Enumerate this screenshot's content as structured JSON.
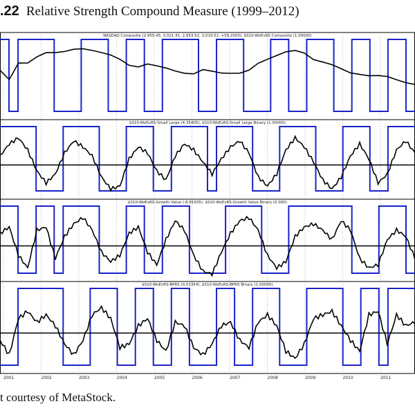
{
  "figure": {
    "number": ".22",
    "title": "Relative Strength Compound Measure (1999–2012)"
  },
  "caption": "t courtesy of MetaStock.",
  "chart_data": {
    "type": "line",
    "x_ticks": [
      "2001",
      "2002",
      "2003",
      "2004",
      "2005",
      "2006",
      "2007",
      "2008",
      "2009",
      "2010",
      "2011"
    ],
    "panels": [
      {
        "label": "NASDAQ Composite (2,955.45, 3,021.41, 2,953.52, 3,019.51, +59.2000), $S10-WoEvRS Composite (1.00000)",
        "price_series": [
          0.62,
          0.5,
          0.75,
          0.73,
          0.8,
          0.86,
          0.88,
          0.92,
          0.96,
          0.95,
          0.9,
          0.86,
          0.84,
          0.8,
          0.72,
          0.68,
          0.7,
          0.66,
          0.64,
          0.62,
          0.6,
          0.58,
          0.62,
          0.58,
          0.56,
          0.58,
          0.6,
          0.64,
          0.72,
          0.76,
          0.82,
          0.9,
          0.94,
          0.9,
          0.78,
          0.72,
          0.68,
          0.64,
          0.6,
          0.58,
          0.54,
          0.52,
          0.5,
          0.47,
          0.45,
          0.43
        ],
        "binary_series": [
          1,
          0,
          1,
          1,
          1,
          1,
          0,
          0,
          0,
          1,
          1,
          1,
          0,
          0,
          1,
          1,
          0,
          0,
          1,
          1,
          1,
          1,
          0,
          0,
          1,
          1,
          1,
          0,
          0,
          0,
          1,
          1,
          0,
          0,
          1,
          1,
          1,
          0,
          0,
          1,
          1,
          0,
          0,
          1,
          1,
          0
        ]
      },
      {
        "label": "$S10-WoEvRS-Small Large (4.35405), $S10-WoEvRS-Small Large Binary (1.00000)",
        "osc_series": [
          0.3,
          0.7,
          0.9,
          0.5,
          -0.2,
          -0.6,
          -0.3,
          0.4,
          0.8,
          0.6,
          0.3,
          -0.4,
          -0.8,
          -0.7,
          0.2,
          0.6,
          0.4,
          -0.2,
          -0.5,
          0.3,
          0.7,
          0.5,
          0.1,
          -0.3,
          0.2,
          0.6,
          0.8,
          0.4,
          -0.4,
          -0.7,
          -0.3,
          0.5,
          0.9,
          0.6,
          0.1,
          -0.5,
          -0.8,
          -0.4,
          0.3,
          0.7,
          0.2,
          -0.6,
          -0.3,
          0.5,
          0.8,
          0.4
        ],
        "binary_series": [
          1,
          1,
          1,
          1,
          0,
          0,
          0,
          1,
          1,
          1,
          1,
          0,
          0,
          0,
          1,
          1,
          1,
          0,
          0,
          1,
          1,
          1,
          1,
          0,
          1,
          1,
          1,
          1,
          0,
          0,
          0,
          1,
          1,
          1,
          1,
          0,
          0,
          0,
          1,
          1,
          1,
          0,
          0,
          1,
          1,
          1
        ]
      },
      {
        "label": "$S10-WoEvRS-Growth Value (-8.81935), $S10-WoEvRS-Growth Value Binary (0.000)",
        "osc_series": [
          0.4,
          0.6,
          -0.3,
          -0.7,
          0.5,
          0.6,
          -0.4,
          0.3,
          0.7,
          0.9,
          0.5,
          -0.2,
          -0.5,
          -0.3,
          0.4,
          0.6,
          -0.2,
          -0.6,
          0.2,
          0.8,
          0.5,
          -0.3,
          -0.8,
          -0.9,
          -0.2,
          0.4,
          0.8,
          0.9,
          0.5,
          -0.3,
          -0.7,
          -0.5,
          0.3,
          0.6,
          0.7,
          0.5,
          0.2,
          0.8,
          0.5,
          -0.4,
          -0.7,
          -0.6,
          0.2,
          0.5,
          0.3,
          -0.4
        ],
        "binary_series": [
          1,
          1,
          0,
          0,
          1,
          1,
          0,
          1,
          1,
          1,
          1,
          0,
          0,
          0,
          1,
          1,
          0,
          0,
          1,
          1,
          1,
          0,
          0,
          0,
          0,
          1,
          1,
          1,
          1,
          0,
          0,
          0,
          1,
          1,
          1,
          1,
          1,
          1,
          1,
          0,
          0,
          0,
          1,
          1,
          1,
          0
        ]
      },
      {
        "label": "$S10-WoEvRS-BPRS (0.01354), $S10-WoEvRS-BPRS Binary (1.00000)",
        "osc_series": [
          -0.2,
          -0.6,
          0.4,
          0.6,
          0.3,
          0.5,
          0.2,
          -0.3,
          -0.6,
          -0.2,
          0.5,
          0.7,
          0.4,
          -0.4,
          -0.3,
          0.2,
          0.4,
          -0.2,
          -0.5,
          0.3,
          0.2,
          -0.4,
          -0.6,
          -0.3,
          0.2,
          0.3,
          -0.2,
          -0.4,
          0.3,
          0.5,
          0.2,
          -0.5,
          -0.7,
          -0.3,
          0.4,
          0.5,
          0.6,
          0.2,
          -0.2,
          -0.5,
          0.5,
          0.6,
          -0.3,
          0.5,
          0.2,
          0.3
        ],
        "binary_series": [
          0,
          0,
          1,
          1,
          1,
          1,
          1,
          0,
          0,
          0,
          1,
          1,
          1,
          0,
          0,
          1,
          1,
          0,
          0,
          1,
          1,
          0,
          0,
          0,
          1,
          1,
          0,
          0,
          1,
          1,
          1,
          0,
          0,
          0,
          1,
          1,
          1,
          1,
          0,
          0,
          1,
          1,
          0,
          1,
          1,
          1
        ]
      }
    ],
    "colors": {
      "binary": "#1a23c8",
      "line": "#000000",
      "zero_line": "#000000"
    }
  }
}
